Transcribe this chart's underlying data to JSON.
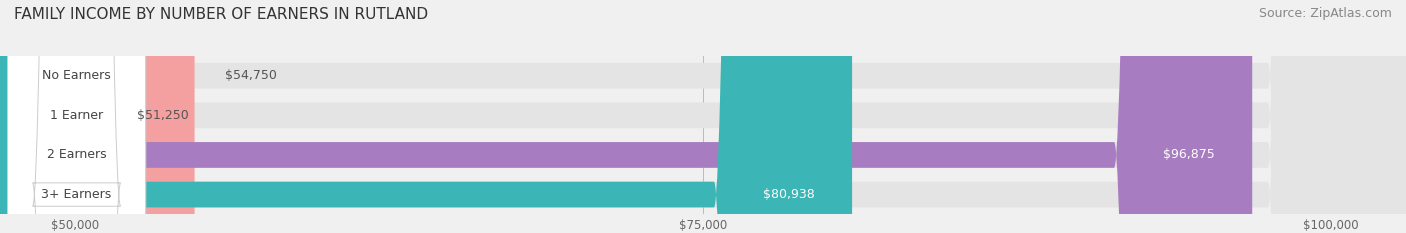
{
  "title": "FAMILY INCOME BY NUMBER OF EARNERS IN RUTLAND",
  "source": "Source: ZipAtlas.com",
  "categories": [
    "No Earners",
    "1 Earner",
    "2 Earners",
    "3+ Earners"
  ],
  "values": [
    54750,
    51250,
    96875,
    80938
  ],
  "bar_colors": [
    "#f4a0a0",
    "#a8b8e8",
    "#a87cc0",
    "#3bb5b5"
  ],
  "value_label_colors": [
    "#555555",
    "#555555",
    "#ffffff",
    "#ffffff"
  ],
  "xmin": 47000,
  "xmax": 103000,
  "xticks": [
    50000,
    75000,
    100000
  ],
  "xtick_labels": [
    "$50,000",
    "$75,000",
    "$100,000"
  ],
  "background_color": "#f0f0f0",
  "bar_background": "#e4e4e4",
  "title_fontsize": 11,
  "source_fontsize": 9,
  "label_fontsize": 9,
  "value_fontsize": 9
}
